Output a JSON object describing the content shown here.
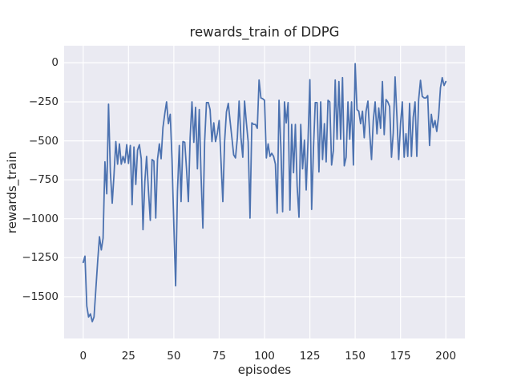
{
  "chart_data": {
    "type": "line",
    "title": "rewards_train of DDPG",
    "xlabel": "episodes",
    "ylabel": "rewards_train",
    "x_ticks": [
      0,
      25,
      50,
      75,
      100,
      125,
      150,
      175,
      200
    ],
    "y_ticks": [
      0,
      -250,
      -500,
      -750,
      -1000,
      -1250,
      -1500
    ],
    "xlim": [
      -10.5,
      210.5
    ],
    "ylim": [
      -1768,
      110
    ],
    "grid": true,
    "legend": "none",
    "style": {
      "figure_bg": "#ffffff",
      "axes_bg": "#eaeaf2",
      "grid_color": "#ffffff",
      "line_color": "#4c72b0",
      "text_color": "#262626"
    },
    "series": [
      {
        "name": "rewards_train",
        "x_start": 0,
        "x_step": 1,
        "values": [
          -1280,
          -1240,
          -1560,
          -1630,
          -1610,
          -1660,
          -1630,
          -1450,
          -1270,
          -1115,
          -1200,
          -1125,
          -635,
          -840,
          -265,
          -700,
          -900,
          -720,
          -505,
          -650,
          -520,
          -650,
          -600,
          -640,
          -525,
          -645,
          -530,
          -910,
          -540,
          -780,
          -560,
          -525,
          -615,
          -1070,
          -760,
          -600,
          -820,
          -1010,
          -620,
          -630,
          -995,
          -620,
          -520,
          -615,
          -415,
          -325,
          -250,
          -390,
          -330,
          -620,
          -1045,
          -1430,
          -825,
          -530,
          -890,
          -505,
          -510,
          -680,
          -890,
          -480,
          -250,
          -510,
          -285,
          -680,
          -300,
          -720,
          -1060,
          -505,
          -255,
          -255,
          -300,
          -505,
          -385,
          -505,
          -450,
          -370,
          -630,
          -890,
          -505,
          -315,
          -260,
          -370,
          -480,
          -590,
          -610,
          -480,
          -245,
          -480,
          -605,
          -245,
          -385,
          -505,
          -995,
          -385,
          -395,
          -395,
          -420,
          -110,
          -225,
          -230,
          -240,
          -610,
          -520,
          -600,
          -580,
          -600,
          -650,
          -965,
          -240,
          -540,
          -955,
          -250,
          -385,
          -255,
          -945,
          -395,
          -705,
          -395,
          -790,
          -990,
          -395,
          -680,
          -495,
          -815,
          -495,
          -108,
          -940,
          -545,
          -255,
          -255,
          -700,
          -250,
          -620,
          -390,
          -635,
          -240,
          -250,
          -655,
          -560,
          -110,
          -490,
          -120,
          -490,
          -95,
          -660,
          -605,
          -250,
          -490,
          -250,
          -655,
          -5,
          -300,
          -310,
          -390,
          -310,
          -480,
          -310,
          -245,
          -450,
          -620,
          -370,
          -250,
          -455,
          -290,
          -420,
          -120,
          -460,
          -235,
          -250,
          -280,
          -605,
          -450,
          -90,
          -345,
          -620,
          -390,
          -250,
          -605,
          -455,
          -600,
          -260,
          -600,
          -350,
          -250,
          -600,
          -235,
          -112,
          -215,
          -225,
          -225,
          -210,
          -530,
          -330,
          -415,
          -370,
          -440,
          -340,
          -160,
          -95,
          -145,
          -120
        ]
      }
    ]
  }
}
